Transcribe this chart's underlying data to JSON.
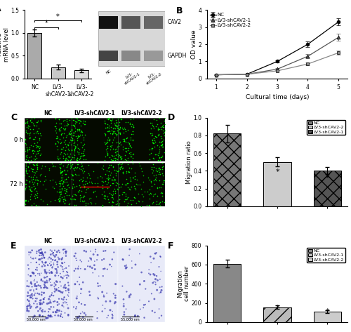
{
  "panel_A_bar": {
    "categories": [
      "NC",
      "LV3-shCAV2-1",
      "LV3-shCAV2-2"
    ],
    "values": [
      1.0,
      0.25,
      0.18
    ],
    "errors": [
      0.08,
      0.05,
      0.04
    ],
    "ylabel": "Relative\nmRNA level",
    "ylim": [
      0,
      1.5
    ],
    "yticks": [
      0.0,
      0.5,
      1.0,
      1.5
    ]
  },
  "panel_B": {
    "days": [
      1,
      2,
      3,
      4,
      5
    ],
    "NC": [
      0.22,
      0.25,
      1.0,
      2.0,
      3.3
    ],
    "LV3_shCAV2_1": [
      0.22,
      0.25,
      0.55,
      1.3,
      2.4
    ],
    "LV3_shCAV2_2": [
      0.22,
      0.25,
      0.45,
      0.85,
      1.5
    ],
    "NC_err": [
      0.02,
      0.02,
      0.08,
      0.15,
      0.2
    ],
    "LV3_shCAV2_1_err": [
      0.02,
      0.02,
      0.06,
      0.12,
      0.2
    ],
    "LV3_shCAV2_2_err": [
      0.02,
      0.02,
      0.05,
      0.08,
      0.12
    ],
    "xlabel": "Cultural time (days)",
    "ylabel": "OD value",
    "ylim": [
      0,
      4
    ],
    "yticks": [
      0,
      1,
      2,
      3,
      4
    ],
    "legend": [
      "NC",
      "LV3-shCAV2-1",
      "LV3-shCAV2-2"
    ]
  },
  "panel_D": {
    "categories": [
      "NC",
      "LV3-shCAV2-2",
      "LV3-shCAV2-1"
    ],
    "values": [
      0.82,
      0.5,
      0.4
    ],
    "errors": [
      0.1,
      0.05,
      0.04
    ],
    "ylabel": "Migration ratio",
    "ylim": [
      0,
      1.0
    ],
    "yticks": [
      0.0,
      0.2,
      0.4,
      0.6,
      0.8,
      1.0
    ]
  },
  "panel_F": {
    "categories": [
      "NC",
      "LV3-shCAV2-1",
      "LV3-shCAV2-2"
    ],
    "values": [
      610,
      155,
      110
    ],
    "errors": [
      40,
      20,
      15
    ],
    "ylabel": "Migration\ncell number",
    "ylim": [
      0,
      800
    ],
    "yticks": [
      0,
      200,
      400,
      600,
      800
    ]
  },
  "background_color": "#ffffff"
}
